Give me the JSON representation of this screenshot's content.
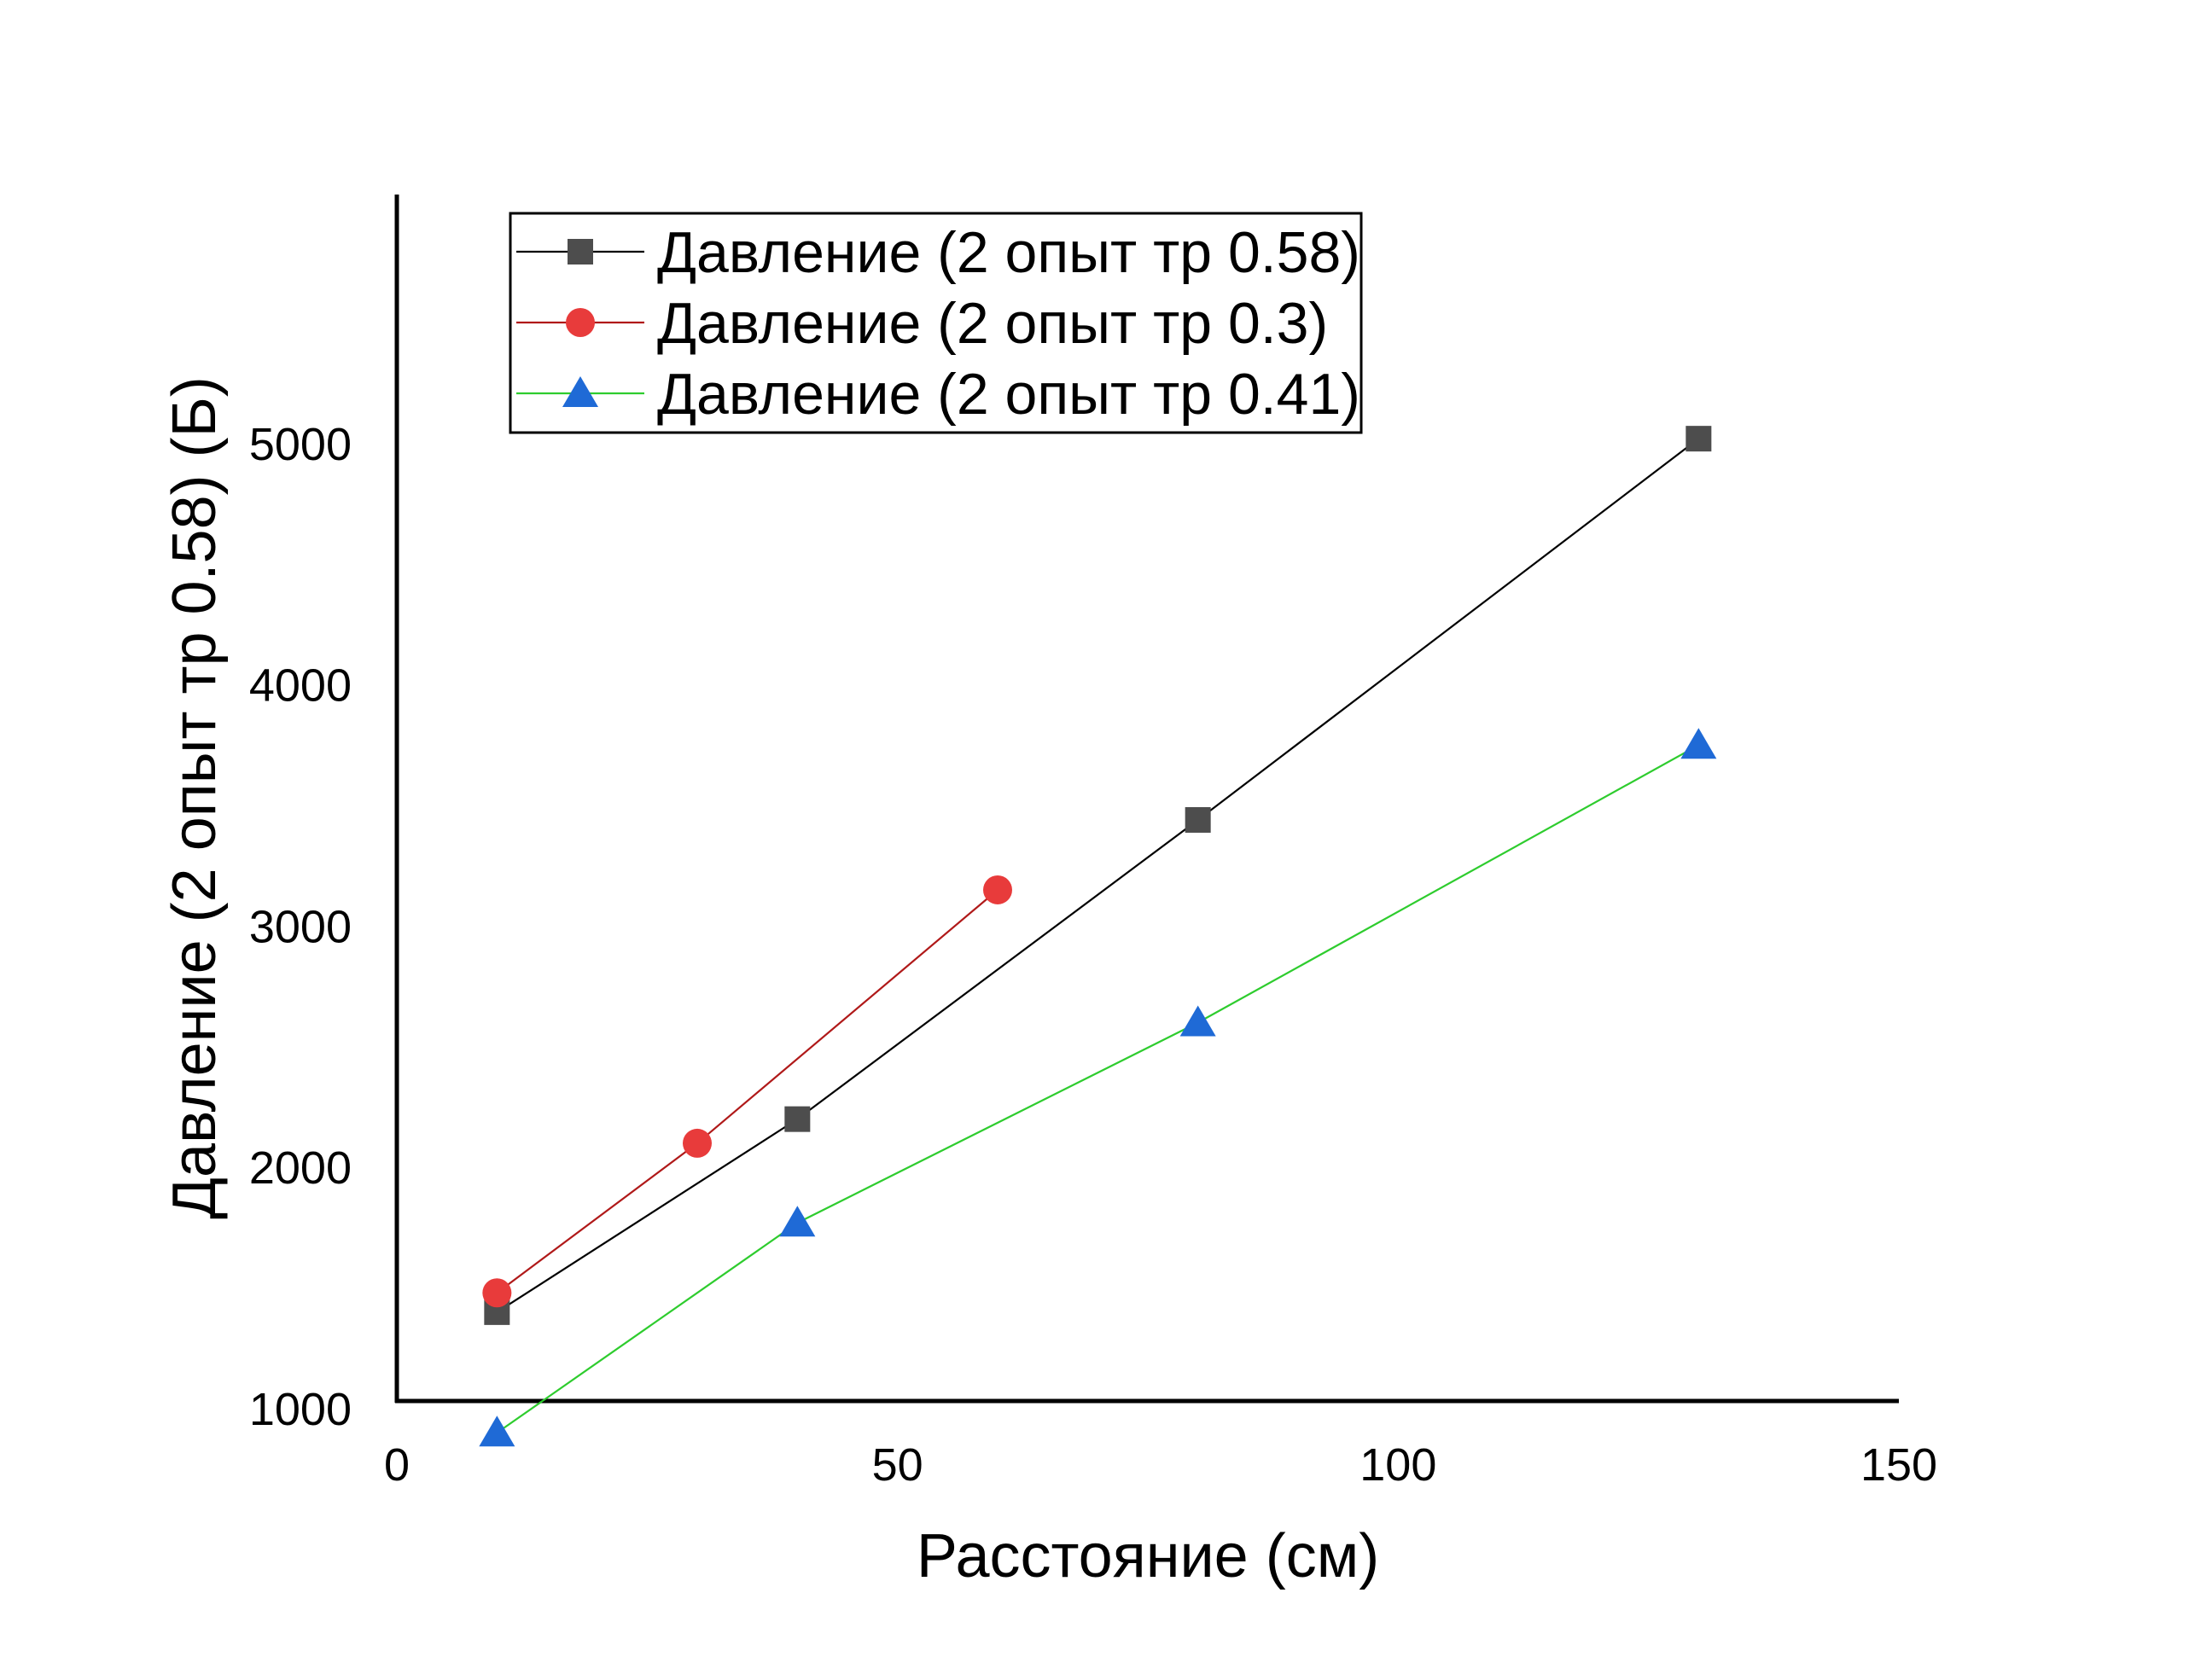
{
  "chart_data": {
    "type": "line",
    "title": "",
    "xlabel": "Расстояние (см)",
    "ylabel": "Давление (2 опыт тр 0.58) (Б)",
    "xlim": [
      0,
      150
    ],
    "ylim": [
      500,
      5500
    ],
    "x_ticks": [
      0,
      50,
      100,
      150
    ],
    "y_ticks": [
      1000,
      2000,
      3000,
      4000,
      5000
    ],
    "grid": false,
    "legend_position": "top-left",
    "series": [
      {
        "name": "Давление (2 опыт тр 0.58)",
        "marker": "square",
        "color": "#000000",
        "marker_color": "#4d4d4d",
        "x": [
          10,
          40,
          80,
          130
        ],
        "y": [
          1400,
          2200,
          3440,
          5020
        ]
      },
      {
        "name": "Давление (2 опыт тр 0.3)",
        "marker": "circle",
        "color": "#b01919",
        "marker_color": "#e83b3b",
        "x": [
          10,
          30,
          60
        ],
        "y": [
          1480,
          2100,
          3150
        ]
      },
      {
        "name": "Давление (2 опыт тр 0.41)",
        "marker": "triangle",
        "color": "#2ecc2e",
        "marker_color": "#1f6ad6",
        "x": [
          10,
          40,
          80,
          130
        ],
        "y": [
          900,
          1770,
          2600,
          3750
        ]
      }
    ]
  }
}
